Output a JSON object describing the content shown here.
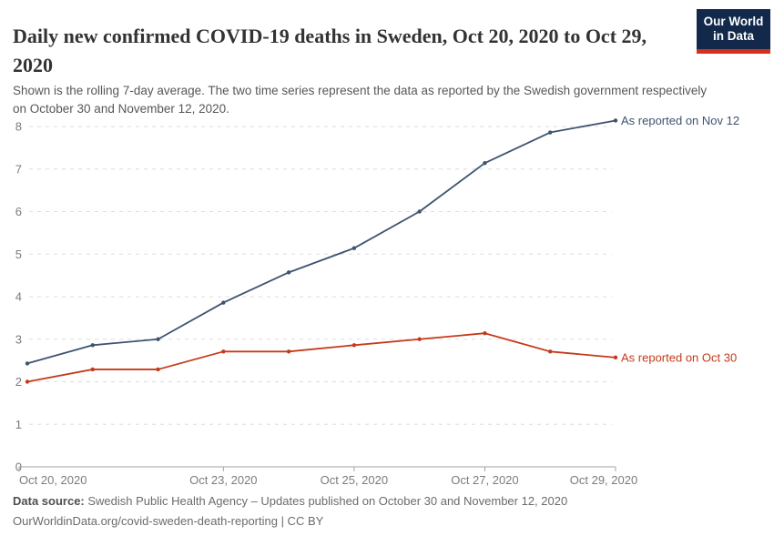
{
  "header": {
    "title": "Daily new confirmed COVID-19 deaths in Sweden, Oct 20, 2020 to Oct 29, 2020",
    "subtitle": "Shown is the rolling 7-day average. The two time series represent the data as reported by the Swedish government respectively on October 30 and November 12, 2020.",
    "logo": {
      "line1": "Our World",
      "line2": "in Data",
      "bg_color": "#12294b",
      "stripe_color": "#d2321e"
    }
  },
  "chart_data": {
    "type": "line",
    "title": "Daily new confirmed COVID-19 deaths in Sweden, Oct 20, 2020 to Oct 29, 2020",
    "x": [
      "Oct 20, 2020",
      "Oct 21, 2020",
      "Oct 22, 2020",
      "Oct 23, 2020",
      "Oct 24, 2020",
      "Oct 25, 2020",
      "Oct 26, 2020",
      "Oct 27, 2020",
      "Oct 28, 2020",
      "Oct 29, 2020"
    ],
    "series": [
      {
        "name": "As reported on Nov 12",
        "color": "#3e5370",
        "values": [
          2.43,
          2.86,
          3.0,
          3.86,
          4.57,
          5.14,
          6.0,
          7.14,
          7.86,
          8.14
        ]
      },
      {
        "name": "As reported on Oct 30",
        "color": "#c53a1b",
        "values": [
          2.0,
          2.29,
          2.29,
          2.71,
          2.71,
          2.86,
          3.0,
          3.14,
          2.71,
          2.57
        ]
      }
    ],
    "xlabel": "",
    "ylabel": "",
    "ylim": [
      0,
      8
    ],
    "yticks": [
      0,
      1,
      2,
      3,
      4,
      5,
      6,
      7,
      8
    ],
    "x_tick_indices": [
      0,
      3,
      5,
      7,
      9
    ],
    "x_tick_labels": [
      "Oct 20, 2020",
      "Oct 23, 2020",
      "Oct 25, 2020",
      "Oct 27, 2020",
      "Oct 29, 2020"
    ],
    "grid": "dashed horizontal",
    "legend_position": "end-of-line labels",
    "colors": {
      "gridline": "#dedede",
      "axis": "#a3a3a3",
      "tick_text": "#7b7b7b"
    }
  },
  "footer": {
    "data_source_label": "Data source:",
    "data_source_text": " Swedish Public Health Agency – Updates published on October 30 and November 12, 2020",
    "link_line": "OurWorldinData.org/covid-sweden-death-reporting | CC BY"
  }
}
